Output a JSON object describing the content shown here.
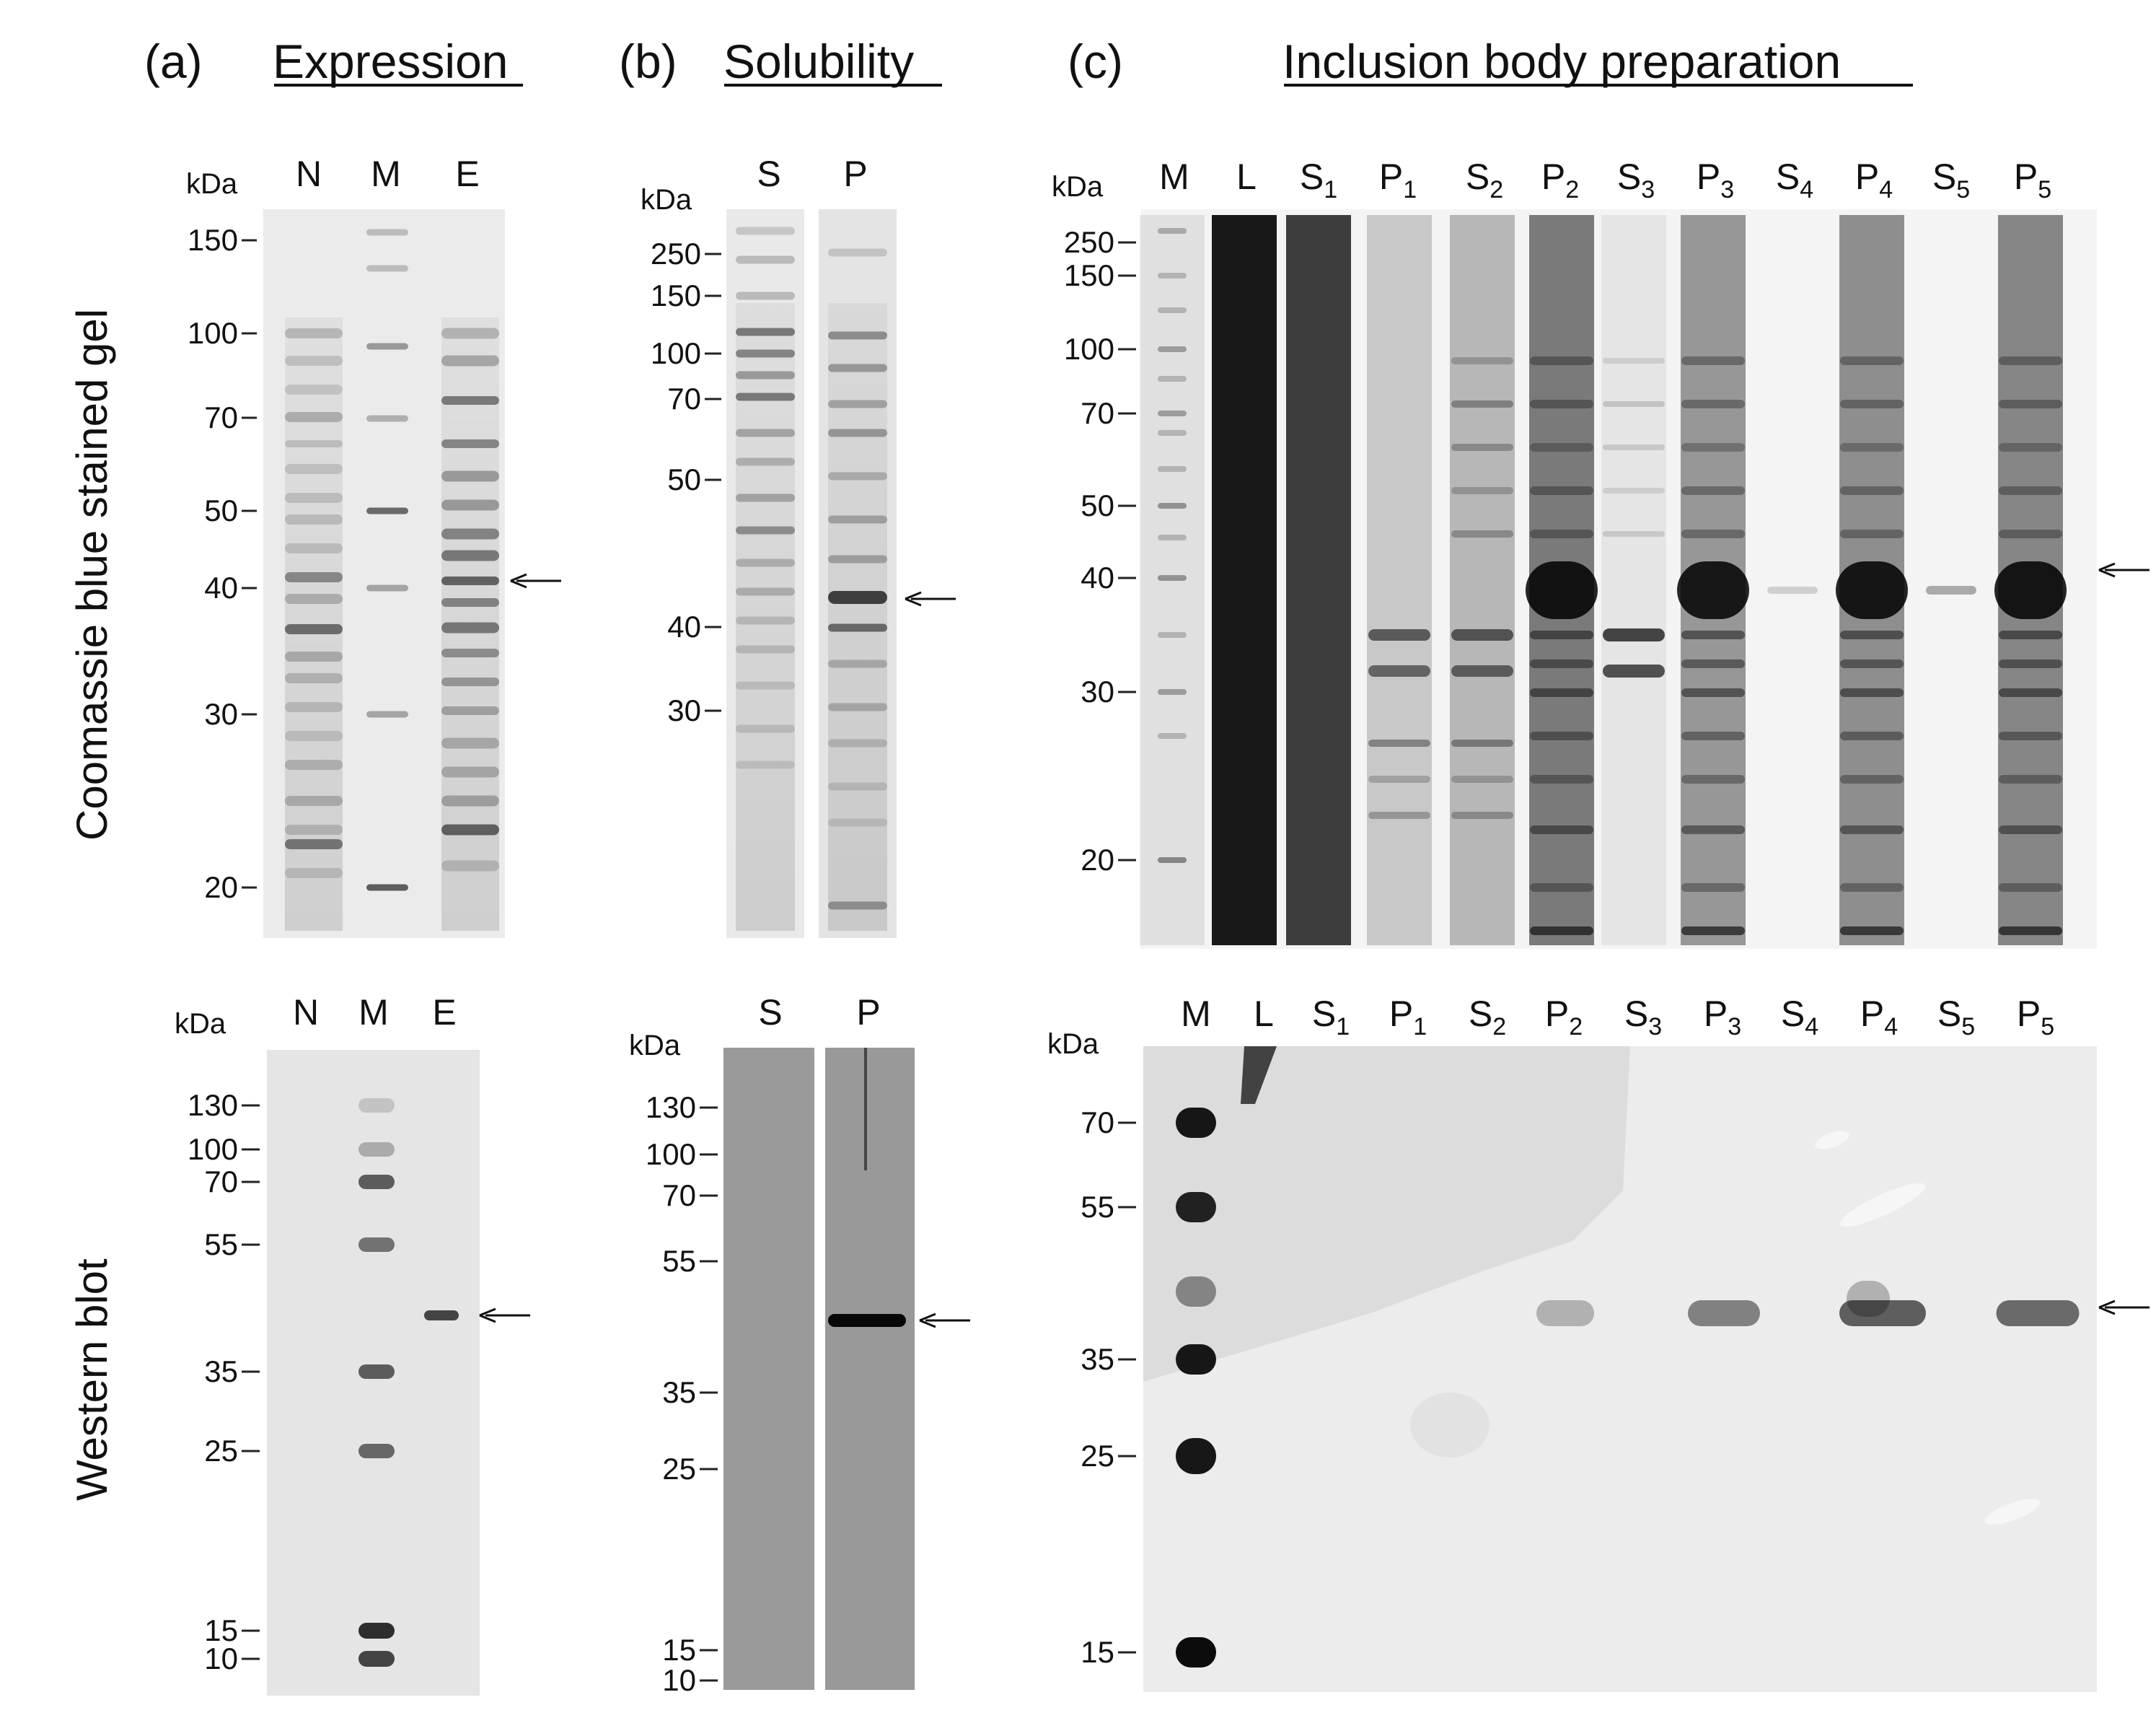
{
  "panels": [
    {
      "letter": "(a)",
      "title": "Expression"
    },
    {
      "letter": "(b)",
      "title": "Solubility"
    },
    {
      "letter": "(c)",
      "title": "Inclusion body preparation"
    }
  ],
  "row_labels": {
    "top": "Coomassie blue stained gel",
    "bottom": "Western blot"
  },
  "kda_label": "kDa",
  "a_gel": {
    "lanes": [
      "N",
      "M",
      "E"
    ],
    "markers": [
      "150",
      "100",
      "70",
      "50",
      "40",
      "30",
      "20"
    ]
  },
  "a_blot": {
    "lanes": [
      "N",
      "M",
      "E"
    ],
    "markers": [
      "130",
      "100",
      "70",
      "55",
      "35",
      "25",
      "15",
      "10"
    ]
  },
  "b_gel": {
    "lanes": [
      "S",
      "P"
    ],
    "markers": [
      "250",
      "150",
      "100",
      "70",
      "50",
      "40",
      "30"
    ]
  },
  "b_blot": {
    "lanes": [
      "S",
      "P"
    ],
    "markers": [
      "130",
      "100",
      "70",
      "55",
      "35",
      "25",
      "15",
      "10"
    ]
  },
  "c_gel": {
    "lanes": [
      {
        "base": "M",
        "sub": ""
      },
      {
        "base": "L",
        "sub": ""
      },
      {
        "base": "S",
        "sub": "1"
      },
      {
        "base": "P",
        "sub": "1"
      },
      {
        "base": "S",
        "sub": "2"
      },
      {
        "base": "P",
        "sub": "2"
      },
      {
        "base": "S",
        "sub": "3"
      },
      {
        "base": "P",
        "sub": "3"
      },
      {
        "base": "S",
        "sub": "4"
      },
      {
        "base": "P",
        "sub": "4"
      },
      {
        "base": "S",
        "sub": "5"
      },
      {
        "base": "P",
        "sub": "5"
      }
    ],
    "markers": [
      "250",
      "150",
      "100",
      "70",
      "50",
      "40",
      "30",
      "20"
    ]
  },
  "c_blot": {
    "lanes": [
      {
        "base": "M",
        "sub": ""
      },
      {
        "base": "L",
        "sub": ""
      },
      {
        "base": "S",
        "sub": "1"
      },
      {
        "base": "P",
        "sub": "1"
      },
      {
        "base": "S",
        "sub": "2"
      },
      {
        "base": "P",
        "sub": "2"
      },
      {
        "base": "S",
        "sub": "3"
      },
      {
        "base": "P",
        "sub": "3"
      },
      {
        "base": "S",
        "sub": "4"
      },
      {
        "base": "P",
        "sub": "4"
      },
      {
        "base": "S",
        "sub": "5"
      },
      {
        "base": "P",
        "sub": "5"
      }
    ],
    "markers": [
      "70",
      "55",
      "35",
      "25",
      "15"
    ]
  },
  "arrow_icon": "left-arrow-icon"
}
